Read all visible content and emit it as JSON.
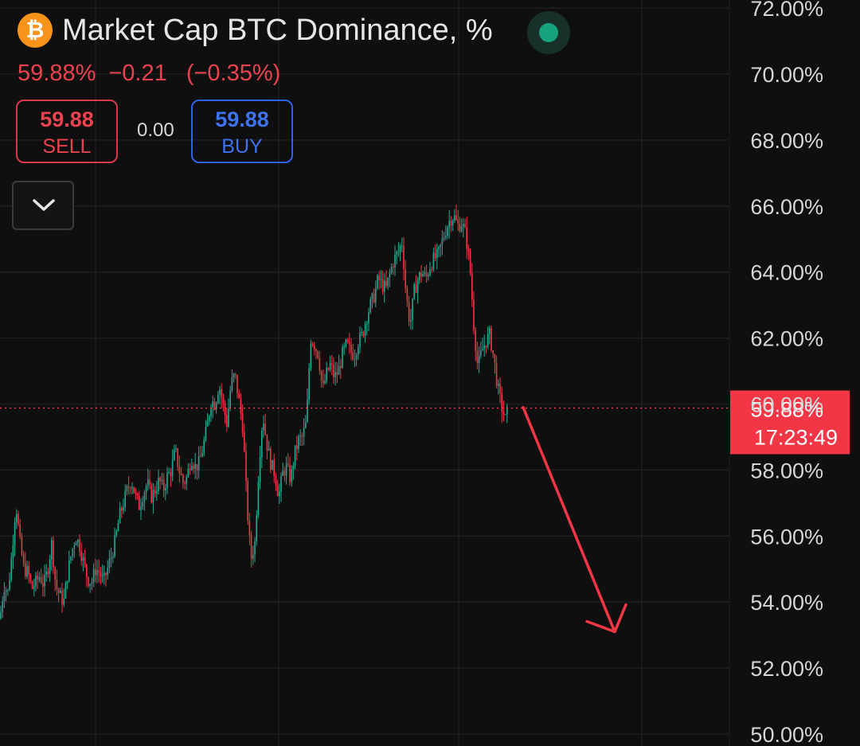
{
  "header": {
    "icon": "bitcoin-icon",
    "icon_glyph": "₿",
    "title": "Market Cap BTC Dominance, %",
    "status_icon": "market-open-dot-icon",
    "status_color": "#16a37e"
  },
  "quote": {
    "last": "59.88%",
    "change": "−0.21",
    "change_pct": "(−0.35%)",
    "color": "#e8434f"
  },
  "trade": {
    "sell_price": "59.88",
    "sell_label": "SELL",
    "spread": "0.00",
    "buy_price": "59.88",
    "buy_label": "BUY"
  },
  "collapse_icon": "chevron-down-icon",
  "chart_data": {
    "type": "candlestick",
    "title": "",
    "xlabel": "",
    "ylabel": "",
    "ylim": [
      50,
      72.5
    ],
    "y_ticks": [
      "72.00%",
      "70.00%",
      "68.00%",
      "66.00%",
      "64.00%",
      "62.00%",
      "60.00%",
      "58.00%",
      "56.00%",
      "54.00%",
      "52.00%",
      "50.00%"
    ],
    "y_tick_values": [
      72,
      70,
      68,
      66,
      64,
      62,
      60,
      58,
      56,
      54,
      52,
      50
    ],
    "grid": true,
    "up_color": "#22ab94",
    "down_color": "#f23645",
    "current_price": {
      "value": 59.88,
      "label": "59.88%",
      "countdown": "17:23:49",
      "color": "#f23645"
    },
    "price_path": [
      [
        0,
        53.5
      ],
      [
        5,
        54.5
      ],
      [
        10,
        54.3
      ],
      [
        15,
        55.5
      ],
      [
        20,
        57.0
      ],
      [
        25,
        55.8
      ],
      [
        30,
        55.0
      ],
      [
        35,
        54.9
      ],
      [
        40,
        54.4
      ],
      [
        45,
        54.6
      ],
      [
        50,
        54.8
      ],
      [
        55,
        54.5
      ],
      [
        60,
        55.0
      ],
      [
        65,
        55.8
      ],
      [
        70,
        54.5
      ],
      [
        75,
        54.2
      ],
      [
        80,
        54.0
      ],
      [
        85,
        54.9
      ],
      [
        90,
        55.5
      ],
      [
        95,
        56.0
      ],
      [
        100,
        55.7
      ],
      [
        105,
        55.2
      ],
      [
        110,
        54.7
      ],
      [
        115,
        54.6
      ],
      [
        120,
        55.0
      ],
      [
        125,
        54.9
      ],
      [
        130,
        54.6
      ],
      [
        135,
        55.0
      ],
      [
        140,
        55.4
      ],
      [
        145,
        55.9
      ],
      [
        150,
        56.6
      ],
      [
        155,
        57.0
      ],
      [
        160,
        57.4
      ],
      [
        165,
        57.7
      ],
      [
        170,
        57.2
      ],
      [
        175,
        56.9
      ],
      [
        180,
        57.3
      ],
      [
        185,
        57.6
      ],
      [
        190,
        57.2
      ],
      [
        195,
        57.4
      ],
      [
        200,
        57.7
      ],
      [
        205,
        57.4
      ],
      [
        210,
        57.8
      ],
      [
        215,
        58.0
      ],
      [
        220,
        58.6
      ],
      [
        225,
        58.0
      ],
      [
        230,
        57.6
      ],
      [
        235,
        57.8
      ],
      [
        240,
        58.4
      ],
      [
        245,
        58.1
      ],
      [
        250,
        58.2
      ],
      [
        255,
        58.7
      ],
      [
        260,
        59.3
      ],
      [
        265,
        60.1
      ],
      [
        270,
        60.0
      ],
      [
        275,
        60.6
      ],
      [
        280,
        60.0
      ],
      [
        285,
        59.4
      ],
      [
        290,
        60.6
      ],
      [
        295,
        60.9
      ],
      [
        300,
        60.1
      ],
      [
        305,
        59.3
      ],
      [
        310,
        57.0
      ],
      [
        315,
        55.3
      ],
      [
        320,
        55.8
      ],
      [
        325,
        58.1
      ],
      [
        330,
        59.7
      ],
      [
        335,
        58.8
      ],
      [
        340,
        58.2
      ],
      [
        345,
        57.9
      ],
      [
        350,
        57.2
      ],
      [
        355,
        57.9
      ],
      [
        360,
        58.1
      ],
      [
        365,
        57.7
      ],
      [
        370,
        58.5
      ],
      [
        375,
        58.9
      ],
      [
        380,
        59.0
      ],
      [
        385,
        59.5
      ],
      [
        390,
        62.0
      ],
      [
        395,
        61.8
      ],
      [
        400,
        61.5
      ],
      [
        405,
        60.4
      ],
      [
        410,
        60.9
      ],
      [
        415,
        61.2
      ],
      [
        420,
        60.8
      ],
      [
        425,
        61.0
      ],
      [
        430,
        61.5
      ],
      [
        435,
        61.8
      ],
      [
        440,
        61.6
      ],
      [
        445,
        61.5
      ],
      [
        450,
        61.9
      ],
      [
        455,
        62.1
      ],
      [
        460,
        62.6
      ],
      [
        465,
        63.0
      ],
      [
        470,
        63.3
      ],
      [
        475,
        63.8
      ],
      [
        480,
        63.6
      ],
      [
        485,
        63.5
      ],
      [
        490,
        64.0
      ],
      [
        495,
        64.4
      ],
      [
        500,
        64.6
      ],
      [
        505,
        64.9
      ],
      [
        510,
        63.3
      ],
      [
        515,
        62.4
      ],
      [
        520,
        63.4
      ],
      [
        525,
        63.8
      ],
      [
        530,
        64.0
      ],
      [
        535,
        63.8
      ],
      [
        540,
        64.2
      ],
      [
        545,
        64.4
      ],
      [
        550,
        64.5
      ],
      [
        555,
        64.9
      ],
      [
        560,
        65.3
      ],
      [
        565,
        65.6
      ],
      [
        570,
        65.7
      ],
      [
        575,
        65.4
      ],
      [
        580,
        65.5
      ],
      [
        585,
        65.1
      ],
      [
        590,
        64.2
      ],
      [
        595,
        62.4
      ],
      [
        600,
        61.1
      ],
      [
        605,
        61.6
      ],
      [
        610,
        61.9
      ],
      [
        615,
        62.1
      ],
      [
        620,
        61.4
      ],
      [
        625,
        60.5
      ],
      [
        630,
        59.9
      ],
      [
        635,
        59.5
      ],
      [
        638,
        59.88
      ]
    ],
    "annotation_arrow": {
      "from": [
        657,
        59.9
      ],
      "to": [
        772,
        53.1
      ],
      "color": "#f23645"
    }
  }
}
